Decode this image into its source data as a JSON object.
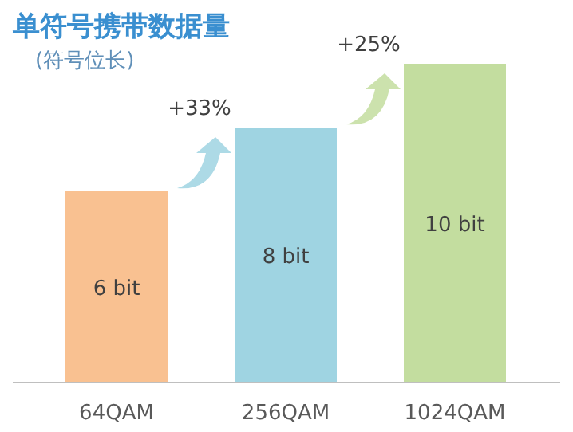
{
  "chart_data": {
    "type": "bar",
    "title": "单符号携带数据量",
    "subtitle": "(符号位长)",
    "categories": [
      "64QAM",
      "256QAM",
      "1024QAM"
    ],
    "values": [
      6,
      8,
      10
    ],
    "colors": [
      "#f9c191",
      "#9fd4e2",
      "#c3dd9f"
    ],
    "value_labels": [
      "6 bit",
      "8 bit",
      "10 bit"
    ],
    "annotations": [
      "+33%",
      "+25%"
    ]
  }
}
